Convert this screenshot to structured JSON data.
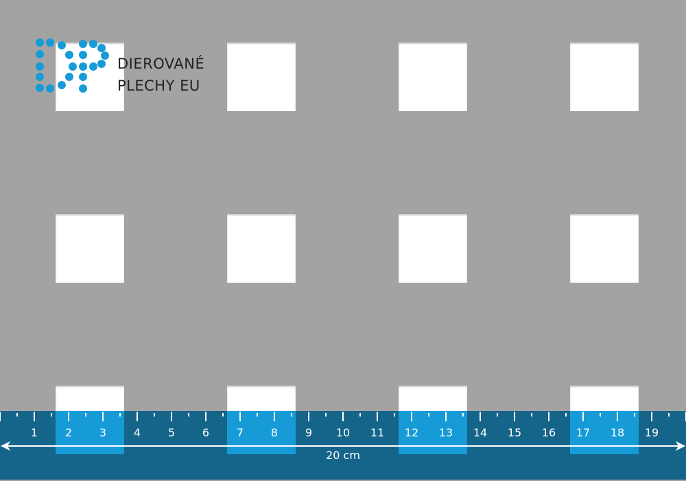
{
  "logo": {
    "line1": "DIEROVANÉ",
    "line2": "PLECHY EU",
    "color": "#179bd7"
  },
  "ruler": {
    "labels": [
      "1",
      "2",
      "3",
      "4",
      "5",
      "6",
      "7",
      "8",
      "9",
      "10",
      "11",
      "12",
      "13",
      "14",
      "15",
      "16",
      "17",
      "18",
      "19"
    ],
    "length_label": "20 cm",
    "background": "#15658b",
    "highlight": "#179bd7"
  },
  "sheet": {
    "background": "#a3a3a3",
    "hole_shape": "square",
    "hole_color": "#ffffff"
  }
}
